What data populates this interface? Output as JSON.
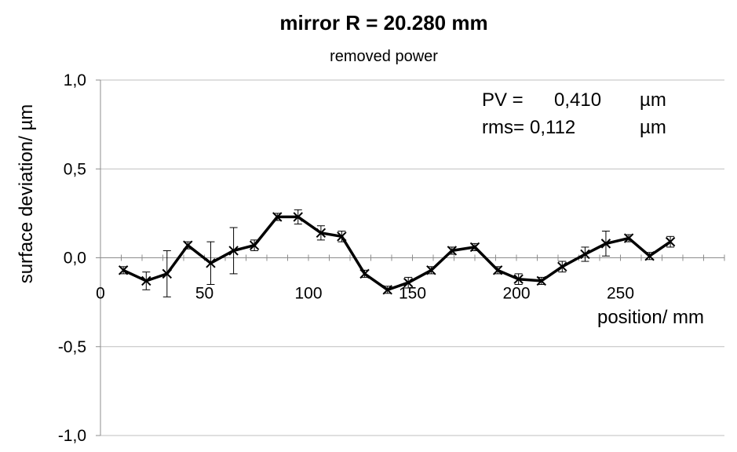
{
  "chart_data": {
    "type": "scatter",
    "title": "mirror  R = 20.280 mm",
    "subtitle": "removed power",
    "xlabel": "position/ mm",
    "ylabel": "surface deviation/ µm",
    "xlim": [
      0,
      300
    ],
    "ylim": [
      -1.0,
      1.0
    ],
    "x_ticks": [
      0,
      50,
      100,
      150,
      200,
      250
    ],
    "x_tick_labels": [
      "0",
      "50",
      "100",
      "150",
      "200",
      "250"
    ],
    "y_ticks": [
      1.0,
      0.5,
      0.0,
      -0.5,
      -1.0
    ],
    "y_tick_labels": [
      "1,0",
      "0,5",
      "0,0",
      "-0,5",
      "-1,0"
    ],
    "grid": "horizontal",
    "legend": "none",
    "marker": "x",
    "line_color": "#000000",
    "series": [
      {
        "x": [
          11,
          22,
          32,
          42,
          53,
          64,
          74,
          85,
          95,
          106,
          116,
          127,
          138,
          148,
          159,
          169,
          180,
          191,
          201,
          212,
          222,
          233,
          243,
          254,
          264,
          274
        ],
        "y": [
          -0.07,
          -0.13,
          -0.09,
          0.07,
          -0.03,
          0.04,
          0.07,
          0.23,
          0.23,
          0.14,
          0.12,
          -0.09,
          -0.18,
          -0.14,
          -0.07,
          0.04,
          0.06,
          -0.07,
          -0.12,
          -0.13,
          -0.05,
          0.02,
          0.08,
          0.11,
          0.01,
          0.09
        ],
        "err": [
          0.02,
          0.05,
          0.13,
          0.02,
          0.12,
          0.13,
          0.03,
          0.02,
          0.04,
          0.04,
          0.03,
          0.02,
          0.02,
          0.03,
          0.02,
          0.02,
          0.02,
          0.02,
          0.03,
          0.02,
          0.03,
          0.04,
          0.07,
          0.02,
          0.02,
          0.03
        ]
      }
    ],
    "annotations": {
      "pv_label": "PV =",
      "pv_value": "0,410",
      "pv_unit": "µm",
      "rms_label": "rms=",
      "rms_value": "0,112",
      "rms_unit": "µm"
    }
  }
}
